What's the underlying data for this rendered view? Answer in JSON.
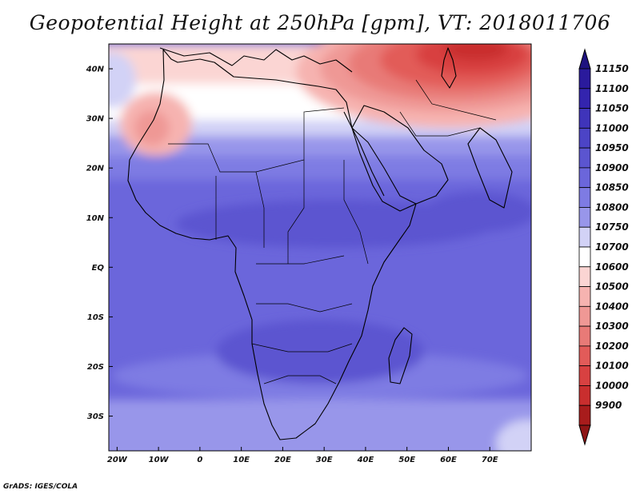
{
  "title": "Geopotential Height at 250hPa [gpm], VT: 2018011706",
  "credit": "GrADS: IGES/COLA",
  "map": {
    "lon_range": [
      -22,
      80
    ],
    "lat_range": [
      -37,
      45
    ],
    "lon_ticks": [
      {
        "value": -20,
        "label": "20W"
      },
      {
        "value": -10,
        "label": "10W"
      },
      {
        "value": 0,
        "label": "0"
      },
      {
        "value": 10,
        "label": "10E"
      },
      {
        "value": 20,
        "label": "20E"
      },
      {
        "value": 30,
        "label": "30E"
      },
      {
        "value": 40,
        "label": "40E"
      },
      {
        "value": 50,
        "label": "50E"
      },
      {
        "value": 60,
        "label": "60E"
      },
      {
        "value": 70,
        "label": "70E"
      }
    ],
    "lat_ticks": [
      {
        "value": 40,
        "label": "40N"
      },
      {
        "value": 30,
        "label": "30N"
      },
      {
        "value": 20,
        "label": "20N"
      },
      {
        "value": 10,
        "label": "10N"
      },
      {
        "value": 0,
        "label": "EQ"
      },
      {
        "value": -10,
        "label": "10S"
      },
      {
        "value": -20,
        "label": "20S"
      },
      {
        "value": -30,
        "label": "30S"
      }
    ]
  },
  "colorbar": {
    "levels": [
      {
        "label": "11150",
        "color": "#2a1a9c"
      },
      {
        "label": "11100",
        "color": "#3324ae"
      },
      {
        "label": "11050",
        "color": "#3f34ba"
      },
      {
        "label": "11000",
        "color": "#4c44c6"
      },
      {
        "label": "10950",
        "color": "#5b55d0"
      },
      {
        "label": "10900",
        "color": "#6b66db"
      },
      {
        "label": "10850",
        "color": "#7e7be3"
      },
      {
        "label": "10800",
        "color": "#9896ea"
      },
      {
        "label": "10750",
        "color": "#d2d2f6"
      },
      {
        "label": "10700",
        "color": "#ffffff"
      },
      {
        "label": "10600",
        "color": "#fbd5d3"
      },
      {
        "label": "10500",
        "color": "#f6b3b0"
      },
      {
        "label": "10400",
        "color": "#ef9895"
      },
      {
        "label": "10300",
        "color": "#e87a77"
      },
      {
        "label": "10200",
        "color": "#e25b59"
      },
      {
        "label": "10100",
        "color": "#d84141"
      },
      {
        "label": "10000",
        "color": "#c92e2e"
      },
      {
        "label": "9900",
        "color": "#a81c1c"
      }
    ],
    "top_arrow_color": "#1e1280",
    "bottom_arrow_color": "#8e1515"
  }
}
